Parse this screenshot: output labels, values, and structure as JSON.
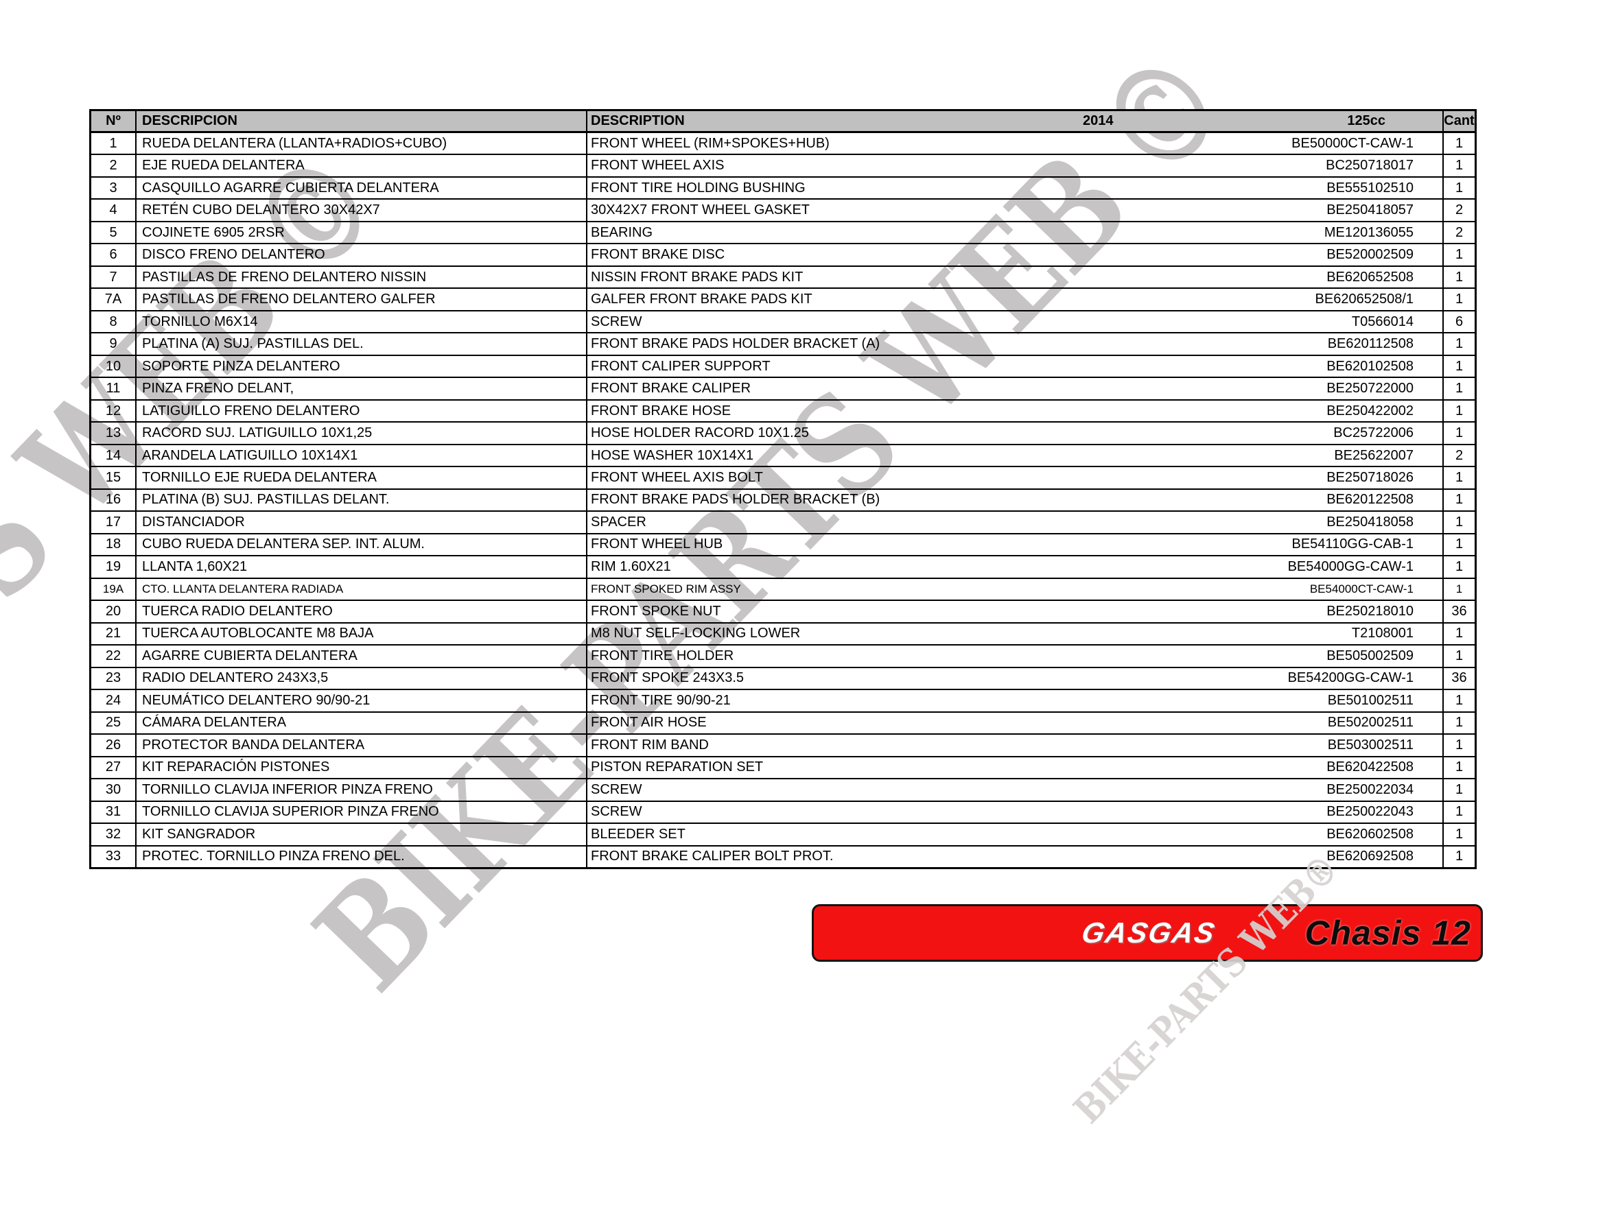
{
  "watermark": {
    "big_text": "BIKE-PARTS WEB ©",
    "small_text": "BIKE-PARTS WEB®"
  },
  "colors": {
    "banner_red": "#f21212",
    "header_gray": "#c0c0c0",
    "watermark_gray": "#c6c4c4"
  },
  "banner": {
    "brand": "GASGAS",
    "label": "Chasis 12"
  },
  "table": {
    "headers": {
      "num": "Nº",
      "desc_es": "DESCRIPCION",
      "desc_en": "DESCRIPTION",
      "year": "2014",
      "model": "125cc",
      "qty": "Cant"
    },
    "rows": [
      {
        "num": "1",
        "desc_es": "RUEDA DELANTERA (LLANTA+RADIOS+CUBO)",
        "desc_en": "FRONT WHEEL  (RIM+SPOKES+HUB)",
        "part": "BE50000CT-CAW-1",
        "qty": "1",
        "small": false
      },
      {
        "num": "2",
        "desc_es": "EJE RUEDA DELANTERA",
        "desc_en": "FRONT WHEEL AXIS",
        "part": "BC250718017",
        "qty": "1",
        "small": false
      },
      {
        "num": "3",
        "desc_es": "CASQUILLO AGARRE CUBIERTA DELANTERA",
        "desc_en": "FRONT TIRE HOLDING BUSHING",
        "part": "BE555102510",
        "qty": "1",
        "small": false
      },
      {
        "num": "4",
        "desc_es": "RETÉN CUBO DELANTERO 30X42X7",
        "desc_en": "30X42X7 FRONT WHEEL GASKET",
        "part": "BE250418057",
        "qty": "2",
        "small": false
      },
      {
        "num": "5",
        "desc_es": "COJINETE 6905 2RSR",
        "desc_en": "BEARING",
        "part": "ME120136055",
        "qty": "2",
        "small": false
      },
      {
        "num": "6",
        "desc_es": "DISCO FRENO DELANTERO",
        "desc_en": "FRONT BRAKE DISC",
        "part": "BE520002509",
        "qty": "1",
        "small": false
      },
      {
        "num": "7",
        "desc_es": "PASTILLAS DE FRENO DELANTERO NISSIN",
        "desc_en": "NISSIN FRONT BRAKE PADS KIT",
        "part": "BE620652508",
        "qty": "1",
        "small": false
      },
      {
        "num": "7A",
        "desc_es": "PASTILLAS DE FRENO DELANTERO GALFER",
        "desc_en": "GALFER FRONT BRAKE PADS KIT",
        "part": "BE620652508/1",
        "qty": "1",
        "small": false
      },
      {
        "num": "8",
        "desc_es": "TORNILLO M6X14",
        "desc_en": "SCREW",
        "part": "T0566014",
        "qty": "6",
        "small": false
      },
      {
        "num": "9",
        "desc_es": "PLATINA (A) SUJ. PASTILLAS DEL.",
        "desc_en": "FRONT BRAKE PADS HOLDER BRACKET (A)",
        "part": "BE620112508",
        "qty": "1",
        "small": false
      },
      {
        "num": "10",
        "desc_es": "SOPORTE PINZA DELANTERO",
        "desc_en": "FRONT CALIPER SUPPORT",
        "part": "BE620102508",
        "qty": "1",
        "small": false
      },
      {
        "num": "11",
        "desc_es": "PINZA FRENO DELANT,",
        "desc_en": "FRONT BRAKE CALIPER",
        "part": "BE250722000",
        "qty": "1",
        "small": false
      },
      {
        "num": "12",
        "desc_es": "LATIGUILLO FRENO DELANTERO",
        "desc_en": "FRONT BRAKE HOSE",
        "part": "BE250422002",
        "qty": "1",
        "small": false
      },
      {
        "num": "13",
        "desc_es": "RACORD SUJ. LATIGUILLO 10X1,25",
        "desc_en": "HOSE HOLDER RACORD 10X1.25",
        "part": "BC25722006",
        "qty": "1",
        "small": false
      },
      {
        "num": "14",
        "desc_es": "ARANDELA LATIGUILLO 10X14X1",
        "desc_en": "HOSE WASHER 10X14X1",
        "part": "BE25622007",
        "qty": "2",
        "small": false
      },
      {
        "num": "15",
        "desc_es": "TORNILLO EJE RUEDA DELANTERA",
        "desc_en": "FRONT WHEEL AXIS BOLT",
        "part": "BE250718026",
        "qty": "1",
        "small": false
      },
      {
        "num": "16",
        "desc_es": "PLATINA (B) SUJ. PASTILLAS DELANT.",
        "desc_en": "FRONT BRAKE PADS HOLDER BRACKET (B)",
        "part": "BE620122508",
        "qty": "1",
        "small": false
      },
      {
        "num": "17",
        "desc_es": "DISTANCIADOR",
        "desc_en": "SPACER",
        "part": "BE250418058",
        "qty": "1",
        "small": false
      },
      {
        "num": "18",
        "desc_es": "CUBO RUEDA DELANTERA SEP. INT. ALUM.",
        "desc_en": "FRONT WHEEL HUB",
        "part": "BE54110GG-CAB-1",
        "qty": "1",
        "small": false
      },
      {
        "num": "19",
        "desc_es": "LLANTA 1,60X21",
        "desc_en": "RIM 1.60X21",
        "part": "BE54000GG-CAW-1",
        "qty": "1",
        "small": false
      },
      {
        "num": "19A",
        "desc_es": "CTO. LLANTA DELANTERA RADIADA",
        "desc_en": "FRONT SPOKED RIM ASSY",
        "part": "BE54000CT-CAW-1",
        "qty": "1",
        "small": true
      },
      {
        "num": "20",
        "desc_es": "TUERCA RADIO DELANTERO",
        "desc_en": "FRONT SPOKE NUT",
        "part": "BE250218010",
        "qty": "36",
        "small": false
      },
      {
        "num": "21",
        "desc_es": "TUERCA AUTOBLOCANTE M8 BAJA",
        "desc_en": "M8 NUT SELF-LOCKING LOWER",
        "part": "T2108001",
        "qty": "1",
        "small": false
      },
      {
        "num": "22",
        "desc_es": "AGARRE CUBIERTA DELANTERA",
        "desc_en": "FRONT TIRE HOLDER",
        "part": "BE505002509",
        "qty": "1",
        "small": false
      },
      {
        "num": "23",
        "desc_es": "RADIO DELANTERO 243X3,5",
        "desc_en": "FRONT SPOKE 243X3.5",
        "part": "BE54200GG-CAW-1",
        "qty": "36",
        "small": false
      },
      {
        "num": "24",
        "desc_es": "NEUMÁTICO DELANTERO 90/90-21",
        "desc_en": "FRONT TIRE 90/90-21",
        "part": "BE501002511",
        "qty": "1",
        "small": false
      },
      {
        "num": "25",
        "desc_es": "CÁMARA DELANTERA",
        "desc_en": "FRONT AIR HOSE",
        "part": "BE502002511",
        "qty": "1",
        "small": false
      },
      {
        "num": "26",
        "desc_es": "PROTECTOR BANDA DELANTERA",
        "desc_en": "FRONT RIM BAND",
        "part": "BE503002511",
        "qty": "1",
        "small": false
      },
      {
        "num": "27",
        "desc_es": "KIT REPARACIÓN PISTONES",
        "desc_en": "PISTON REPARATION SET",
        "part": "BE620422508",
        "qty": "1",
        "small": false
      },
      {
        "num": "30",
        "desc_es": "TORNILLO CLAVIJA INFERIOR PINZA FRENO",
        "desc_en": "SCREW",
        "part": "BE250022034",
        "qty": "1",
        "small": false
      },
      {
        "num": "31",
        "desc_es": "TORNILLO CLAVIJA SUPERIOR PINZA FRENO",
        "desc_en": "SCREW",
        "part": "BE250022043",
        "qty": "1",
        "small": false
      },
      {
        "num": "32",
        "desc_es": "KIT SANGRADOR",
        "desc_en": "BLEEDER SET",
        "part": "BE620602508",
        "qty": "1",
        "small": false
      },
      {
        "num": "33",
        "desc_es": "PROTEC. TORNILLO PINZA FRENO DEL.",
        "desc_en": "FRONT BRAKE CALIPER BOLT PROT.",
        "part": "BE620692508",
        "qty": "1",
        "small": false
      }
    ]
  }
}
